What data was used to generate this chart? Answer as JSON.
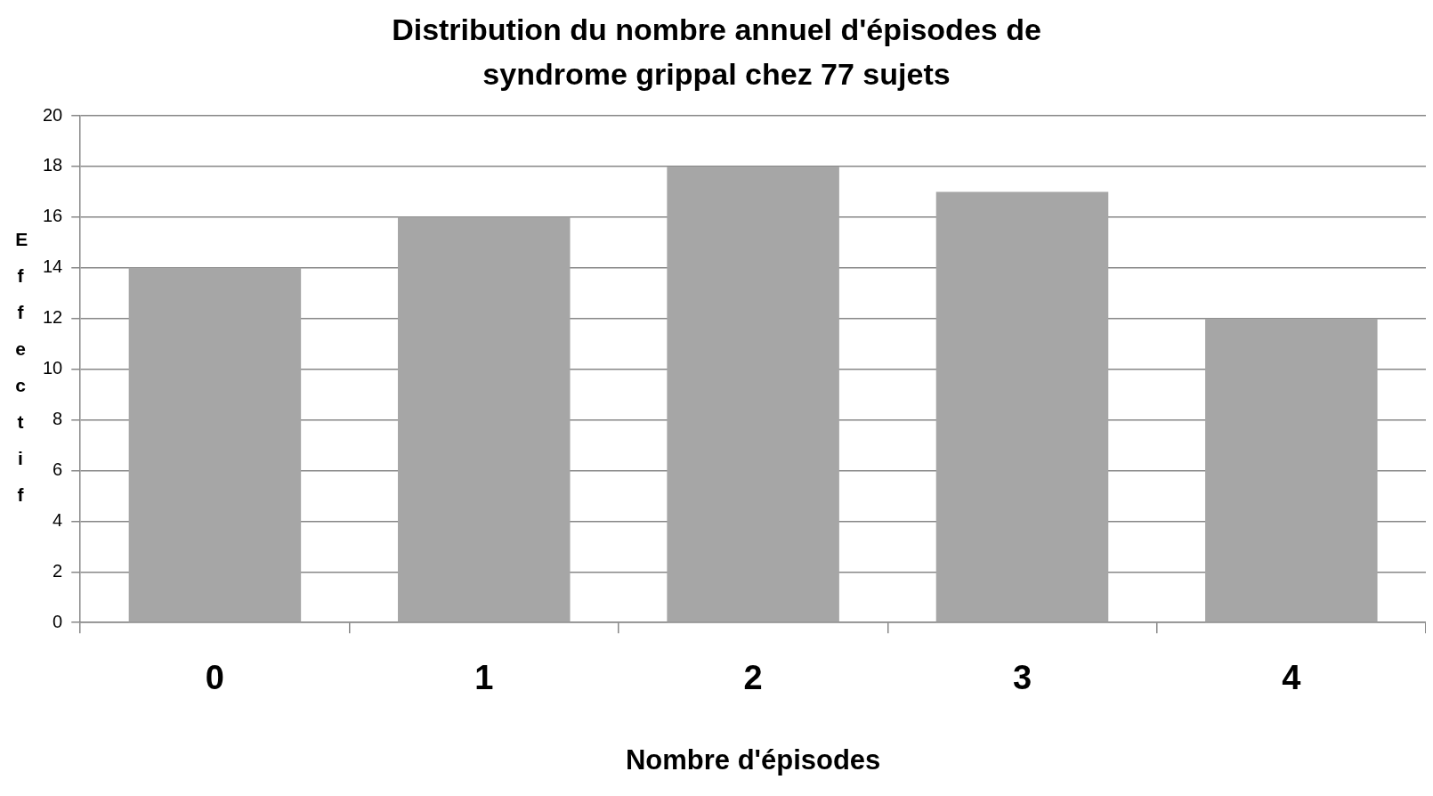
{
  "chart_data": {
    "type": "bar",
    "title": "Distribution du nombre annuel d'épisodes de syndrome grippal chez 77 sujets",
    "xlabel": "Nombre d'épisodes",
    "ylabel": "Effectif",
    "categories": [
      "0",
      "1",
      "2",
      "3",
      "4"
    ],
    "values": [
      14,
      16,
      18,
      17,
      12
    ],
    "color": "#a6a6a6",
    "ylim": [
      0,
      20
    ],
    "yticks": [
      0,
      2,
      4,
      6,
      8,
      10,
      12,
      14,
      16,
      18,
      20
    ],
    "grid": "y",
    "legend": false
  }
}
